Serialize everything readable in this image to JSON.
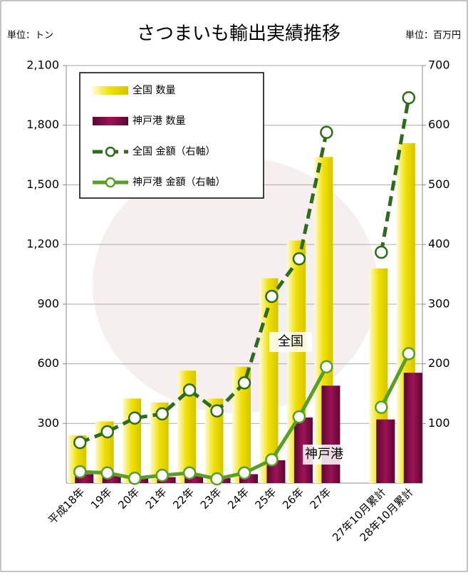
{
  "chart_data": {
    "type": "bar",
    "title": "さつまいも輸出実績推移",
    "y_unit": "単位：トン",
    "y2_unit": "単位：百万円",
    "categories": [
      "平成18年",
      "19年",
      "20年",
      "21年",
      "22年",
      "23年",
      "24年",
      "25年",
      "26年",
      "27年",
      null,
      "27年10月累計",
      "28年10月累計"
    ],
    "series": [
      {
        "name": "全国 数量",
        "type": "bar",
        "color": "#f0e000",
        "values": [
          240,
          310,
          425,
          405,
          565,
          425,
          585,
          1030,
          1220,
          1640,
          null,
          1080,
          1710
        ]
      },
      {
        "name": "神戸港 数量",
        "type": "bar",
        "color": "#8b0a4a",
        "values": [
          45,
          35,
          25,
          30,
          35,
          25,
          45,
          115,
          330,
          490,
          null,
          320,
          555
        ]
      },
      {
        "name": "全国 金額（右軸）",
        "type": "line",
        "axis": "y2",
        "dashed": true,
        "color": "#2e6b1a",
        "values": [
          68,
          86,
          109,
          116,
          156,
          121,
          168,
          313,
          376,
          588,
          null,
          387,
          646
        ]
      },
      {
        "name": "神戸港 金額（右軸）",
        "type": "line",
        "axis": "y2",
        "dashed": false,
        "color": "#5a9e2a",
        "values": [
          19,
          17,
          8,
          13,
          17,
          7,
          17,
          39,
          111,
          195,
          null,
          127,
          217
        ]
      }
    ],
    "annotations": [
      "全国",
      "神戸港"
    ],
    "ylim": [
      0,
      2100
    ],
    "yticks": [
      300,
      600,
      900,
      {
        "value": 1200,
        "label": "1,200"
      },
      {
        "value": 1500,
        "label": "1,500"
      },
      {
        "value": 1800,
        "label": "1,800"
      },
      {
        "value": 2100,
        "label": "2,100"
      }
    ],
    "y2lim": [
      0,
      700
    ],
    "y2ticks": [
      100,
      200,
      300,
      400,
      500,
      600,
      700
    ],
    "grid": true
  }
}
